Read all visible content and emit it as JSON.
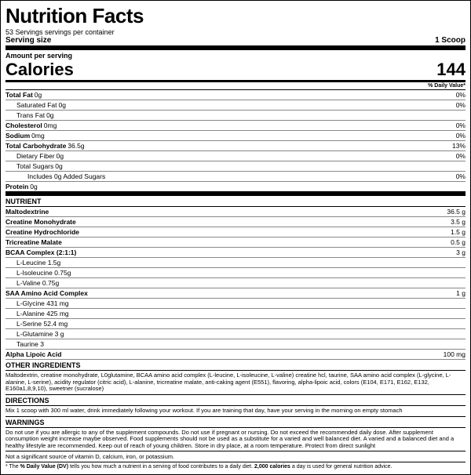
{
  "title": "Nutrition Facts",
  "servings": "53 Servings servings per container",
  "serving_size_label": "Serving size",
  "serving_size_value": "1 Scoop",
  "amount_label": "Amount per serving",
  "calories_label": "Calories",
  "calories_value": "144",
  "dv_header": "% Daily Value*",
  "macros": [
    {
      "name": "Total Fat",
      "amt": "0g",
      "pct": "0%",
      "bold": true,
      "indent": 0
    },
    {
      "name": "Saturated Fat",
      "amt": "0g",
      "pct": "0%",
      "bold": false,
      "indent": 1
    },
    {
      "name": "Trans Fat",
      "amt": "0g",
      "pct": "",
      "bold": false,
      "indent": 1
    },
    {
      "name": "Cholesterol",
      "amt": "0mg",
      "pct": "0%",
      "bold": true,
      "indent": 0
    },
    {
      "name": "Sodium",
      "amt": "0mg",
      "pct": "0%",
      "bold": true,
      "indent": 0
    },
    {
      "name": "Total Carbohydrate",
      "amt": "36.5g",
      "pct": "13%",
      "bold": true,
      "indent": 0
    },
    {
      "name": "Dietary Fiber",
      "amt": "0g",
      "pct": "0%",
      "bold": false,
      "indent": 1
    },
    {
      "name": "Total Sugars",
      "amt": "0g",
      "pct": "",
      "bold": false,
      "indent": 1
    },
    {
      "name": "Includes 0g Added Sugars",
      "amt": "",
      "pct": "0%",
      "bold": false,
      "indent": 2
    },
    {
      "name": "Protein",
      "amt": "0g",
      "pct": "",
      "bold": true,
      "indent": 0
    }
  ],
  "nutrient_header": "NUTRIENT",
  "nutrients": [
    {
      "name": "Maltodextrine",
      "amt": "36.5 g",
      "bold": true,
      "indent": 0
    },
    {
      "name": "Creatine Monohydrate",
      "amt": "3.5 g",
      "bold": true,
      "indent": 0
    },
    {
      "name": "Creatine Hydrochloride",
      "amt": "1.5 g",
      "bold": true,
      "indent": 0
    },
    {
      "name": "Tricreatine Malate",
      "amt": "0.5 g",
      "bold": true,
      "indent": 0
    },
    {
      "name": "BCAA Complex (2:1:1)",
      "amt": "3 g",
      "bold": true,
      "indent": 0
    },
    {
      "name": "L-Leucine 1.5g",
      "amt": "",
      "bold": false,
      "indent": 1
    },
    {
      "name": "L-Isoleucine 0.75g",
      "amt": "",
      "bold": false,
      "indent": 1
    },
    {
      "name": "L-Valine 0.75g",
      "amt": "",
      "bold": false,
      "indent": 1,
      "thick": true
    },
    {
      "name": "SAA Amino Acid Complex",
      "amt": "1 g",
      "bold": true,
      "indent": 0
    },
    {
      "name": "L-Glycine 431 mg",
      "amt": "",
      "bold": false,
      "indent": 1
    },
    {
      "name": "L-Alanine 425 mg",
      "amt": "",
      "bold": false,
      "indent": 1
    },
    {
      "name": "L-Serine 52.4 mg",
      "amt": "",
      "bold": false,
      "indent": 1
    },
    {
      "name": "L-Glutamine 3 g",
      "amt": "",
      "bold": false,
      "indent": 1
    },
    {
      "name": "Taurine 3",
      "amt": "",
      "bold": false,
      "indent": 1,
      "thick": true
    },
    {
      "name": "Alpha Lipoic Acid",
      "amt": "100 mg",
      "bold": true,
      "indent": 0,
      "thickbottom": true
    }
  ],
  "other_header": "OTHER INGREDIENTS",
  "other_text": "Maltodextrin, creatine monohydrate, L0glutamine, BCAA amino acid complex (L-leucine, L-isoleucine, L-valine) creatine hcl, taurine, SAA amino acid complex (L-glycine, L-alanine, L-serine), acidity regulator (citric acid), L-alanine, tricreatine malate, anti-caking agent (E551), flavoring, alpha-lipoic acid, colors (E104, E171, E162, E132, E160a1,8,9,10), sweetner (sucralose)",
  "directions_header": "DIRECTIONS",
  "directions_text": "Mix 1 scoop with 300 ml water, drink immediately following your workout. If you are training that day, have your serving in the morning on empty stomach",
  "warnings_header": "WARNINGS",
  "warnings_text": "Do not use if you are allergic to any of the supplement compounds. Do not use if pregnant or nursing. Do not exceed the recommended daily dose. After supplement consumption weight increase maybe observed. Food supplements should not be used as a substitute for a varied and well balanced diet. A varied and a balanced diet and a healthy lifestyle are recommended. Keep out of reach of young children. Store in dry place, at a room temperature. Protect from direct sunlight",
  "not_sig": "Not a significant source of vitamin D, calcium, iron, or potassium.",
  "dv_note_prefix": "* The ",
  "dv_note_bold": "% Daily Value (DV)",
  "dv_note_mid": " tells you how much a nutrient in a serving of food contributes to a daily diet. ",
  "dv_note_cal": "2,000 calories",
  "dv_note_suffix": " a day is used for general nutrition advice."
}
